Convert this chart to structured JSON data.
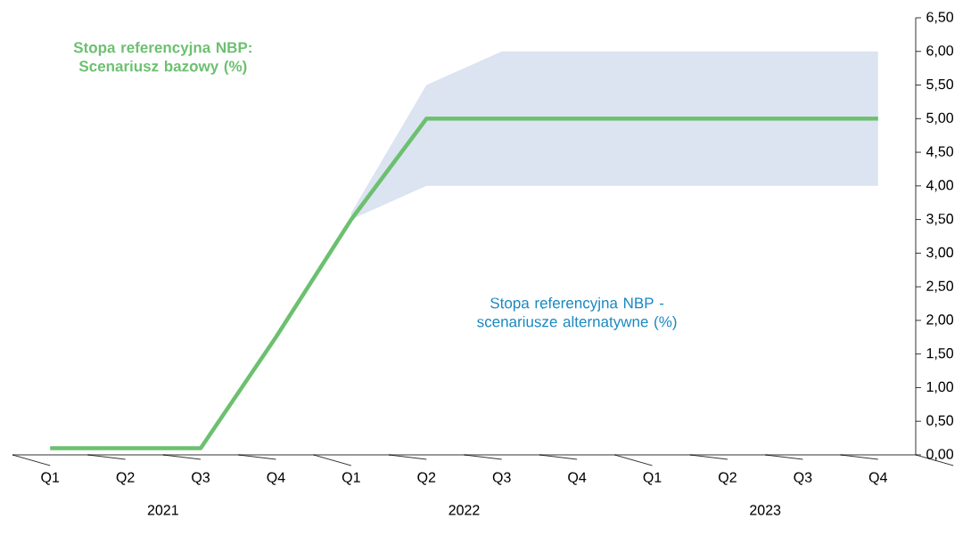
{
  "chart_data": {
    "type": "line",
    "categories": [
      "Q1",
      "Q2",
      "Q3",
      "Q4",
      "Q1",
      "Q2",
      "Q3",
      "Q4",
      "Q1",
      "Q2",
      "Q3",
      "Q4"
    ],
    "series": [
      {
        "name": "Stopa referencyjna NBP: Scenariusz bazowy (%)",
        "color": "#6cc070",
        "values": [
          0.1,
          0.1,
          0.1,
          1.75,
          3.5,
          5.0,
          5.0,
          5.0,
          5.0,
          5.0,
          5.0,
          5.0
        ],
        "lower": [
          null,
          null,
          null,
          null,
          3.5,
          4.0,
          4.0,
          4.0,
          4.0,
          4.0,
          4.0,
          4.0
        ],
        "upper": [
          null,
          null,
          null,
          null,
          3.6,
          5.5,
          6.0,
          6.0,
          6.0,
          6.0,
          6.0,
          6.0
        ]
      }
    ],
    "ylim": [
      0,
      6.5
    ],
    "yticks": [
      {
        "value": 0,
        "label": "0,00"
      },
      {
        "value": 0.5,
        "label": "0,50"
      },
      {
        "value": 1,
        "label": "1,00"
      },
      {
        "value": 1.5,
        "label": "1,50"
      },
      {
        "value": 2,
        "label": "2,00"
      },
      {
        "value": 2.5,
        "label": "2,50"
      },
      {
        "value": 3,
        "label": "3,00"
      },
      {
        "value": 3.5,
        "label": "3,50"
      },
      {
        "value": 4,
        "label": "4,00"
      },
      {
        "value": 4.5,
        "label": "4,50"
      },
      {
        "value": 5,
        "label": "5,00"
      },
      {
        "value": 5.5,
        "label": "5,50"
      },
      {
        "value": 6,
        "label": "6,00"
      },
      {
        "value": 6.5,
        "label": "6,50"
      }
    ],
    "annotations": [
      "Stopa referencyjna NBP - scenariusze alternatywne (%)",
      "2021",
      "2022",
      "2023"
    ],
    "legend": false,
    "grid": false,
    "line_style": "solid",
    "marker": "none"
  }
}
